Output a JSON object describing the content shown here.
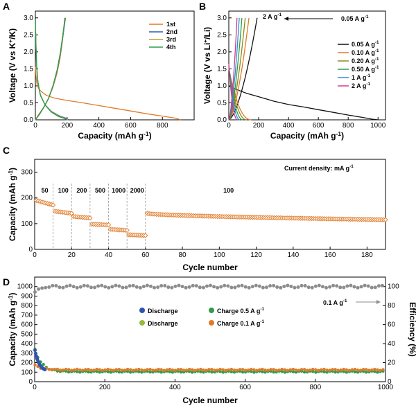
{
  "chart_data": [
    {
      "panel": "A",
      "type": "line",
      "xlabel": "Capacity (mAh g",
      "xlabel_sup": "-1",
      "xlabel_end": ")",
      "ylabel": "Voltage (V vs K",
      "ylabel_sup": "+",
      "ylabel_end": "/K)",
      "xlim": [
        0,
        1000
      ],
      "ylim": [
        0,
        3.2
      ],
      "xticks": [
        "0",
        "200",
        "400",
        "600",
        "800"
      ],
      "yticks": [
        "0.0",
        "0.5",
        "1.0",
        "1.5",
        "2.0",
        "2.5",
        "3.0"
      ],
      "legend_position": "top-right",
      "series": [
        {
          "name": "1st",
          "color": "#e07a28",
          "discharge": [
            [
              0,
              1.55
            ],
            [
              5,
              1.25
            ],
            [
              10,
              1.05
            ],
            [
              20,
              0.92
            ],
            [
              40,
              0.82
            ],
            [
              70,
              0.72
            ],
            [
              120,
              0.64
            ],
            [
              200,
              0.57
            ],
            [
              300,
              0.5
            ],
            [
              400,
              0.42
            ],
            [
              500,
              0.34
            ],
            [
              600,
              0.26
            ],
            [
              700,
              0.18
            ],
            [
              800,
              0.11
            ],
            [
              880,
              0.05
            ],
            [
              915,
              0.0
            ]
          ],
          "charge": [
            [
              0,
              0.0
            ],
            [
              20,
              0.15
            ],
            [
              50,
              0.35
            ],
            [
              80,
              0.6
            ],
            [
              110,
              0.95
            ],
            [
              135,
              1.35
            ],
            [
              155,
              1.8
            ],
            [
              170,
              2.3
            ],
            [
              180,
              2.75
            ],
            [
              185,
              3.0
            ]
          ]
        },
        {
          "name": "2nd",
          "color": "#2d5fa8",
          "discharge": [
            [
              0,
              2.95
            ],
            [
              4,
              2.2
            ],
            [
              8,
              1.6
            ],
            [
              15,
              1.15
            ],
            [
              30,
              0.75
            ],
            [
              60,
              0.45
            ],
            [
              100,
              0.25
            ],
            [
              150,
              0.12
            ],
            [
              190,
              0.05
            ],
            [
              210,
              0.0
            ]
          ],
          "charge": [
            [
              0,
              0.0
            ],
            [
              25,
              0.15
            ],
            [
              55,
              0.38
            ],
            [
              85,
              0.65
            ],
            [
              115,
              1.05
            ],
            [
              140,
              1.5
            ],
            [
              160,
              2.0
            ],
            [
              175,
              2.5
            ],
            [
              185,
              2.85
            ],
            [
              190,
              3.0
            ]
          ]
        },
        {
          "name": "3rd",
          "color": "#c2a22a",
          "discharge": [
            [
              0,
              2.95
            ],
            [
              4,
              2.15
            ],
            [
              8,
              1.55
            ],
            [
              16,
              1.1
            ],
            [
              32,
              0.72
            ],
            [
              62,
              0.43
            ],
            [
              100,
              0.24
            ],
            [
              148,
              0.11
            ],
            [
              185,
              0.04
            ],
            [
              205,
              0.0
            ]
          ],
          "charge": [
            [
              0,
              0.0
            ],
            [
              24,
              0.15
            ],
            [
              54,
              0.37
            ],
            [
              84,
              0.64
            ],
            [
              113,
              1.03
            ],
            [
              138,
              1.48
            ],
            [
              158,
              1.98
            ],
            [
              173,
              2.48
            ],
            [
              183,
              2.83
            ],
            [
              188,
              3.0
            ]
          ]
        },
        {
          "name": "4th",
          "color": "#2e9c4a",
          "discharge": [
            [
              0,
              2.95
            ],
            [
              4,
              2.1
            ],
            [
              9,
              1.5
            ],
            [
              17,
              1.08
            ],
            [
              33,
              0.7
            ],
            [
              64,
              0.42
            ],
            [
              100,
              0.23
            ],
            [
              145,
              0.1
            ],
            [
              182,
              0.04
            ],
            [
              200,
              0.0
            ]
          ],
          "charge": [
            [
              0,
              0.0
            ],
            [
              23,
              0.15
            ],
            [
              53,
              0.37
            ],
            [
              83,
              0.63
            ],
            [
              112,
              1.02
            ],
            [
              137,
              1.47
            ],
            [
              157,
              1.97
            ],
            [
              172,
              2.47
            ],
            [
              182,
              2.82
            ],
            [
              187,
              3.0
            ]
          ]
        }
      ]
    },
    {
      "panel": "B",
      "type": "line",
      "xlabel": "Capacity (mAh g",
      "xlabel_sup": "-1",
      "xlabel_end": ")",
      "ylabel": "Voltage (V vs Li",
      "ylabel_sup": "+",
      "ylabel_end": "/Li)",
      "xlim": [
        0,
        1050
      ],
      "ylim": [
        0,
        3.2
      ],
      "xticks": [
        "0",
        "200",
        "400",
        "600",
        "800",
        "1000"
      ],
      "yticks": [
        "0.0",
        "0.5",
        "1.0",
        "1.5",
        "2.0",
        "2.5",
        "3.0"
      ],
      "annotation": {
        "left": "2 A g",
        "right": "0.05 A g",
        "sup": "-1"
      },
      "legend_position": "right",
      "legend_unit_sup": "-1",
      "series": [
        {
          "name": "0.05 A g",
          "color": "#111111",
          "cap": 1000,
          "chg": 190,
          "vstart": 1.0
        },
        {
          "name": "0.10 A g",
          "color": "#e07a28",
          "cap": 150,
          "chg": 135,
          "vstart": 1.5
        },
        {
          "name": "0.20 A g",
          "color": "#8a8a1a",
          "cap": 120,
          "chg": 110,
          "vstart": 1.55
        },
        {
          "name": "0.50 A g",
          "color": "#2e9c4a",
          "cap": 95,
          "chg": 88,
          "vstart": 1.6
        },
        {
          "name": "1 A g",
          "color": "#2a8fd6",
          "cap": 75,
          "chg": 70,
          "vstart": 1.6
        },
        {
          "name": "2 A g",
          "color": "#d23c8e",
          "cap": 58,
          "chg": 55,
          "vstart": 1.65
        }
      ]
    },
    {
      "panel": "C",
      "type": "scatter",
      "xlabel": "Cycle number",
      "ylabel": "Capacity (mAh g",
      "ylabel_sup": "-1",
      "ylabel_end": ")",
      "xlim": [
        0,
        190
      ],
      "ylim": [
        0,
        350
      ],
      "xticks": [
        "0",
        "20",
        "40",
        "60",
        "80",
        "100",
        "120",
        "140",
        "160",
        "180"
      ],
      "yticks": [
        "0",
        "100",
        "200",
        "300"
      ],
      "marker_color": "#e07a28",
      "annotation": "Current density: mA g",
      "annotation_sup": "-1",
      "segments": [
        {
          "label": "50",
          "from": 1,
          "to": 10,
          "start": 190,
          "end": 172
        },
        {
          "label": "100",
          "from": 11,
          "to": 20,
          "start": 148,
          "end": 140
        },
        {
          "label": "200",
          "from": 21,
          "to": 30,
          "start": 128,
          "end": 122
        },
        {
          "label": "500",
          "from": 31,
          "to": 40,
          "start": 98,
          "end": 95
        },
        {
          "label": "1000",
          "from": 41,
          "to": 50,
          "start": 78,
          "end": 74
        },
        {
          "label": "2000",
          "from": 51,
          "to": 60,
          "start": 57,
          "end": 54
        },
        {
          "label": "100",
          "from": 61,
          "to": 190,
          "start": 140,
          "end": 115
        }
      ],
      "separators": [
        10,
        20,
        30,
        40,
        50,
        60
      ]
    },
    {
      "panel": "D",
      "type": "scatter",
      "xlabel": "Cycle number",
      "ylabel": "Capacity (mAh g",
      "ylabel_sup": "-1",
      "ylabel_end": ")",
      "y2label": "Efficiency (%)",
      "xlim": [
        0,
        1000
      ],
      "ylim": [
        0,
        1100
      ],
      "y2lim": [
        0,
        110
      ],
      "xticks": [
        "0",
        "200",
        "400",
        "600",
        "800",
        "1000"
      ],
      "yticks": [
        "0",
        "100",
        "200",
        "300",
        "400",
        "500",
        "600",
        "700",
        "800",
        "900",
        "1000"
      ],
      "y2ticks": [
        "0",
        "20",
        "40",
        "60",
        "80",
        "100"
      ],
      "annotation": "0.1 A g",
      "annotation_sup": "-1",
      "legend_position": "center",
      "legend": [
        {
          "name": "Discharge",
          "color": "#2d55b0"
        },
        {
          "name": "Charge",
          "suffix": "0.5 A g",
          "color": "#2e9c4a"
        },
        {
          "name": "Discharge",
          "color": "#9ab83a"
        },
        {
          "name": "Charge",
          "suffix": "0.1 A g",
          "color": "#e07a28"
        }
      ],
      "legend_unit_sup": "-1",
      "efficiency_color": "#8c8c8c",
      "efficiency_value": 100,
      "capacity_01_value": 125,
      "capacity_05_value": 105,
      "initial_discharge_05": 350
    }
  ]
}
